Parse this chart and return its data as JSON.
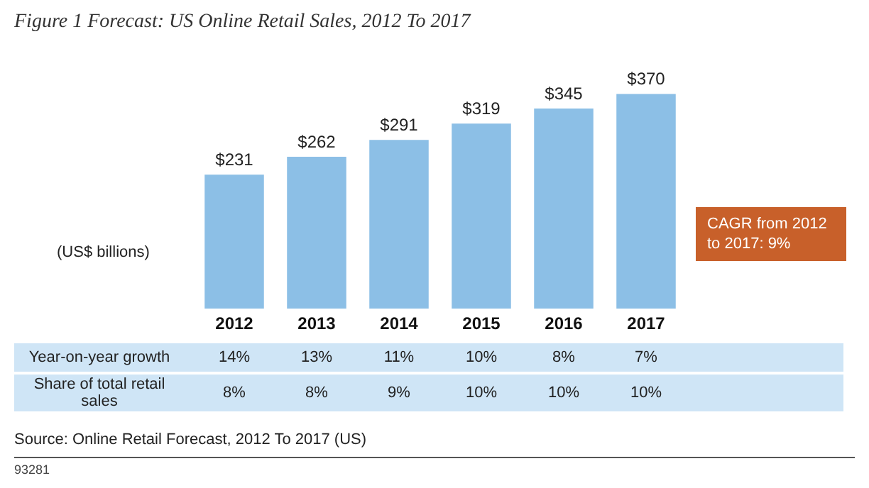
{
  "chart_data": {
    "type": "bar",
    "title": "Figure 1 Forecast: US Online Retail Sales, 2012 To 2017",
    "ylabel": "(US$ billions)",
    "categories": [
      "2012",
      "2013",
      "2014",
      "2015",
      "2016",
      "2017"
    ],
    "values": [
      231,
      262,
      291,
      319,
      345,
      370
    ],
    "value_labels": [
      "$231",
      "$262",
      "$291",
      "$319",
      "$345",
      "$370"
    ],
    "color": "#8cbfe6",
    "tick_labels": "x",
    "grid": false,
    "legend": false,
    "annotations": [
      "CAGR from 2012 to 2017: 9%",
      "Year-on-year growth",
      "14%",
      "13%",
      "11%",
      "10%",
      "8%",
      "7%",
      "Share of total retail sales",
      "8%",
      "8%",
      "9%",
      "10%",
      "10%",
      "10%",
      "Source: Online Retail Forecast, 2012 To 2017 (US)",
      "93281"
    ]
  }
}
